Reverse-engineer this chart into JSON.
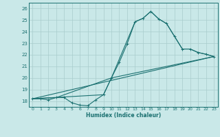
{
  "xlabel": "Humidex (Indice chaleur)",
  "bg_color": "#c9e8e8",
  "grid_color": "#a8cccc",
  "line_color": "#1a7070",
  "xlim": [
    -0.5,
    23.5
  ],
  "ylim": [
    17.5,
    26.5
  ],
  "yticks": [
    18,
    19,
    20,
    21,
    22,
    23,
    24,
    25,
    26
  ],
  "xticks": [
    0,
    1,
    2,
    3,
    4,
    5,
    6,
    7,
    8,
    9,
    10,
    11,
    12,
    13,
    14,
    15,
    16,
    17,
    18,
    19,
    20,
    21,
    22,
    23
  ],
  "line1_x": [
    0,
    1,
    2,
    3,
    4,
    5,
    6,
    7,
    8,
    9,
    10,
    11,
    12,
    13,
    14,
    15,
    16,
    17,
    18,
    19,
    20,
    21,
    22,
    23
  ],
  "line1_y": [
    18.2,
    18.2,
    18.1,
    18.3,
    18.3,
    17.85,
    17.65,
    17.6,
    18.1,
    18.55,
    20.0,
    21.35,
    22.95,
    24.85,
    25.15,
    25.75,
    25.1,
    24.7,
    23.6,
    22.5,
    22.5,
    22.2,
    22.05,
    21.85
  ],
  "line2_x": [
    0,
    3,
    10,
    13,
    14,
    15,
    16,
    17,
    18,
    19,
    20,
    21,
    22,
    23
  ],
  "line2_y": [
    18.2,
    18.3,
    20.0,
    24.85,
    25.15,
    25.75,
    25.1,
    24.7,
    23.6,
    22.5,
    22.5,
    22.2,
    22.05,
    21.85
  ],
  "line3_x": [
    0,
    23
  ],
  "line3_y": [
    18.2,
    21.85
  ],
  "line4_x": [
    0,
    9,
    10,
    23
  ],
  "line4_y": [
    18.2,
    18.55,
    20.0,
    21.85
  ]
}
